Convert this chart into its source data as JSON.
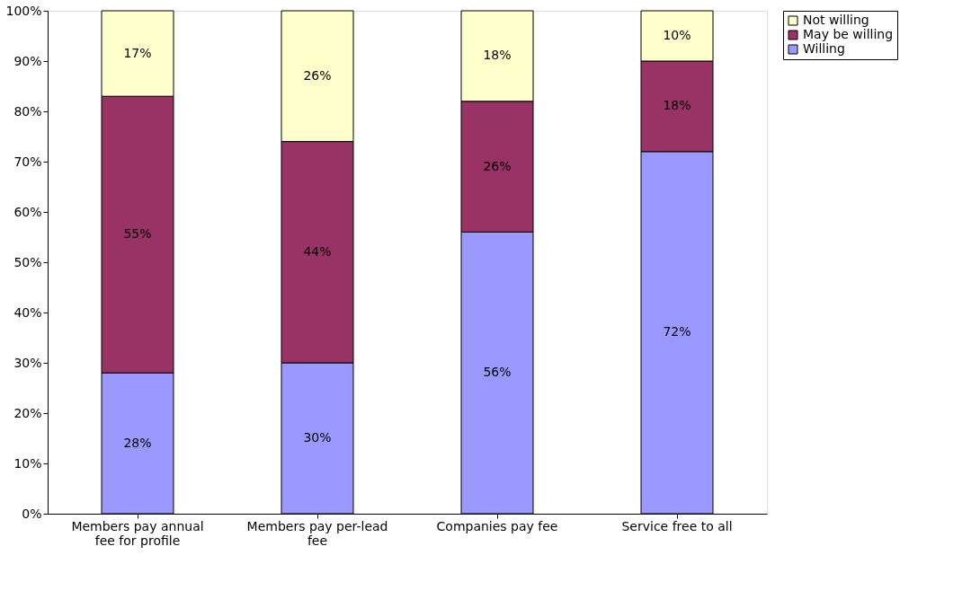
{
  "chart_data": {
    "type": "bar",
    "stacked": true,
    "categories": [
      "Members pay annual fee for profile",
      "Members pay per-lead fee",
      "Companies pay fee",
      "Service free to all"
    ],
    "series": [
      {
        "name": "Willing",
        "color": "#9999ff",
        "values": [
          28,
          30,
          56,
          72
        ],
        "value_labels": [
          "28%",
          "30%",
          "56%",
          "72%"
        ]
      },
      {
        "name": "May be willing",
        "color": "#993366",
        "values": [
          55,
          44,
          26,
          18
        ],
        "value_labels": [
          "55%",
          "44%",
          "26%",
          "18%"
        ]
      },
      {
        "name": "Not willing",
        "color": "#ffffcc",
        "values": [
          17,
          26,
          18,
          10
        ],
        "value_labels": [
          "17%",
          "26%",
          "18%",
          "10%"
        ]
      }
    ],
    "ylim": [
      0,
      100
    ],
    "yticks": [
      {
        "value": 0,
        "label": "0%"
      },
      {
        "value": 10,
        "label": "10%"
      },
      {
        "value": 20,
        "label": "20%"
      },
      {
        "value": 30,
        "label": "30%"
      },
      {
        "value": 40,
        "label": "40%"
      },
      {
        "value": 50,
        "label": "50%"
      },
      {
        "value": 60,
        "label": "60%"
      },
      {
        "value": 70,
        "label": "70%"
      },
      {
        "value": 80,
        "label": "80%"
      },
      {
        "value": 90,
        "label": "90%"
      },
      {
        "value": 100,
        "label": "100%"
      }
    ],
    "grid": false,
    "legend": "right"
  }
}
